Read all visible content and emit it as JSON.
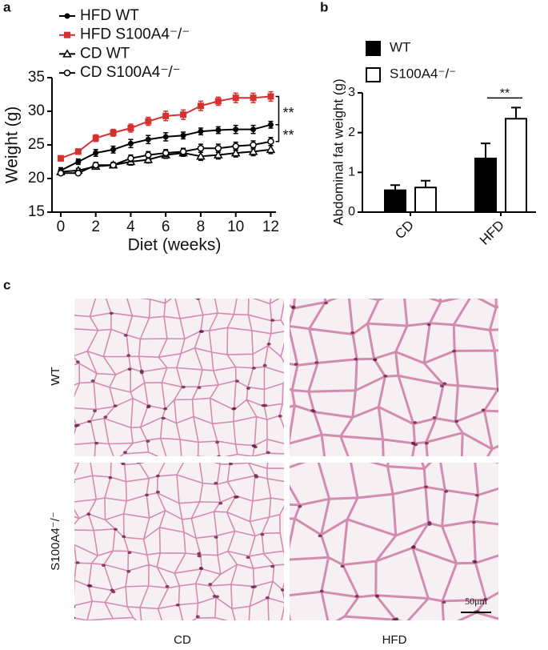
{
  "panel_labels": [
    "a",
    "b",
    "c"
  ],
  "chart_data": [
    {
      "type": "line",
      "xlabel": "Diet (weeks)",
      "ylabel": "Weight (g)",
      "x": [
        0,
        1,
        2,
        3,
        4,
        5,
        6,
        7,
        8,
        9,
        10,
        11,
        12
      ],
      "xlim": [
        -0.5,
        12.3
      ],
      "ylim": [
        15,
        35
      ],
      "xticks": [
        0,
        2,
        4,
        6,
        8,
        10,
        12
      ],
      "yticks": [
        15,
        20,
        25,
        30,
        35
      ],
      "series": [
        {
          "name": "HFD WT",
          "color": "#000000",
          "marker": "circle",
          "values": [
            21.2,
            22.5,
            23.8,
            24.3,
            25.2,
            25.8,
            26.2,
            26.4,
            27.0,
            27.2,
            27.3,
            27.3,
            28.0
          ],
          "errors": [
            0.4,
            0.4,
            0.5,
            0.5,
            0.6,
            0.6,
            0.6,
            0.5,
            0.5,
            0.5,
            0.6,
            0.6,
            0.5
          ]
        },
        {
          "name": "HFD S100A4⁻/⁻",
          "color": "#d7312f",
          "marker": "square",
          "values": [
            23.0,
            24.0,
            26.0,
            26.8,
            27.5,
            28.5,
            29.3,
            29.5,
            30.8,
            31.5,
            32.0,
            32.0,
            32.2
          ],
          "errors": [
            0.4,
            0.4,
            0.5,
            0.5,
            0.6,
            0.6,
            0.7,
            0.7,
            0.7,
            0.6,
            0.7,
            0.7,
            0.7
          ]
        },
        {
          "name": "CD WT",
          "color": "#000000",
          "marker": "triangle-open",
          "values": [
            21.0,
            21.2,
            21.8,
            22.0,
            22.5,
            22.8,
            23.5,
            23.8,
            23.3,
            23.5,
            23.8,
            24.0,
            24.3
          ],
          "errors": [
            0.3,
            0.3,
            0.4,
            0.4,
            0.5,
            0.5,
            0.5,
            0.5,
            0.6,
            0.6,
            0.6,
            0.6,
            0.6
          ]
        },
        {
          "name": "CD S100A4⁻/⁻",
          "color": "#000000",
          "marker": "circle-open",
          "values": [
            20.8,
            20.8,
            22.0,
            22.0,
            23.0,
            23.5,
            23.8,
            24.0,
            24.5,
            24.5,
            24.8,
            25.0,
            25.5
          ],
          "errors": [
            0.3,
            0.3,
            0.4,
            0.4,
            0.5,
            0.5,
            0.5,
            0.5,
            0.6,
            0.6,
            0.6,
            0.6,
            0.6
          ]
        }
      ],
      "annotations": [
        "**",
        "**"
      ]
    },
    {
      "type": "bar",
      "ylabel": "Abdominal fat weight (g)",
      "categories": [
        "CD",
        "HFD"
      ],
      "ylim": [
        0,
        3
      ],
      "yticks": [
        0,
        1,
        2,
        3
      ],
      "series": [
        {
          "name": "WT",
          "color": "#000000",
          "values": [
            0.55,
            1.35
          ],
          "errors": [
            0.13,
            0.38
          ]
        },
        {
          "name": "S100A4⁻/⁻",
          "color": "#ffffff",
          "values": [
            0.62,
            2.35
          ],
          "errors": [
            0.17,
            0.28
          ]
        }
      ],
      "annotations": [
        "**"
      ]
    }
  ],
  "histology": {
    "rows": [
      "WT",
      "S100A4⁻/⁻"
    ],
    "columns": [
      "CD",
      "HFD"
    ],
    "scale_bar": "50μm"
  }
}
